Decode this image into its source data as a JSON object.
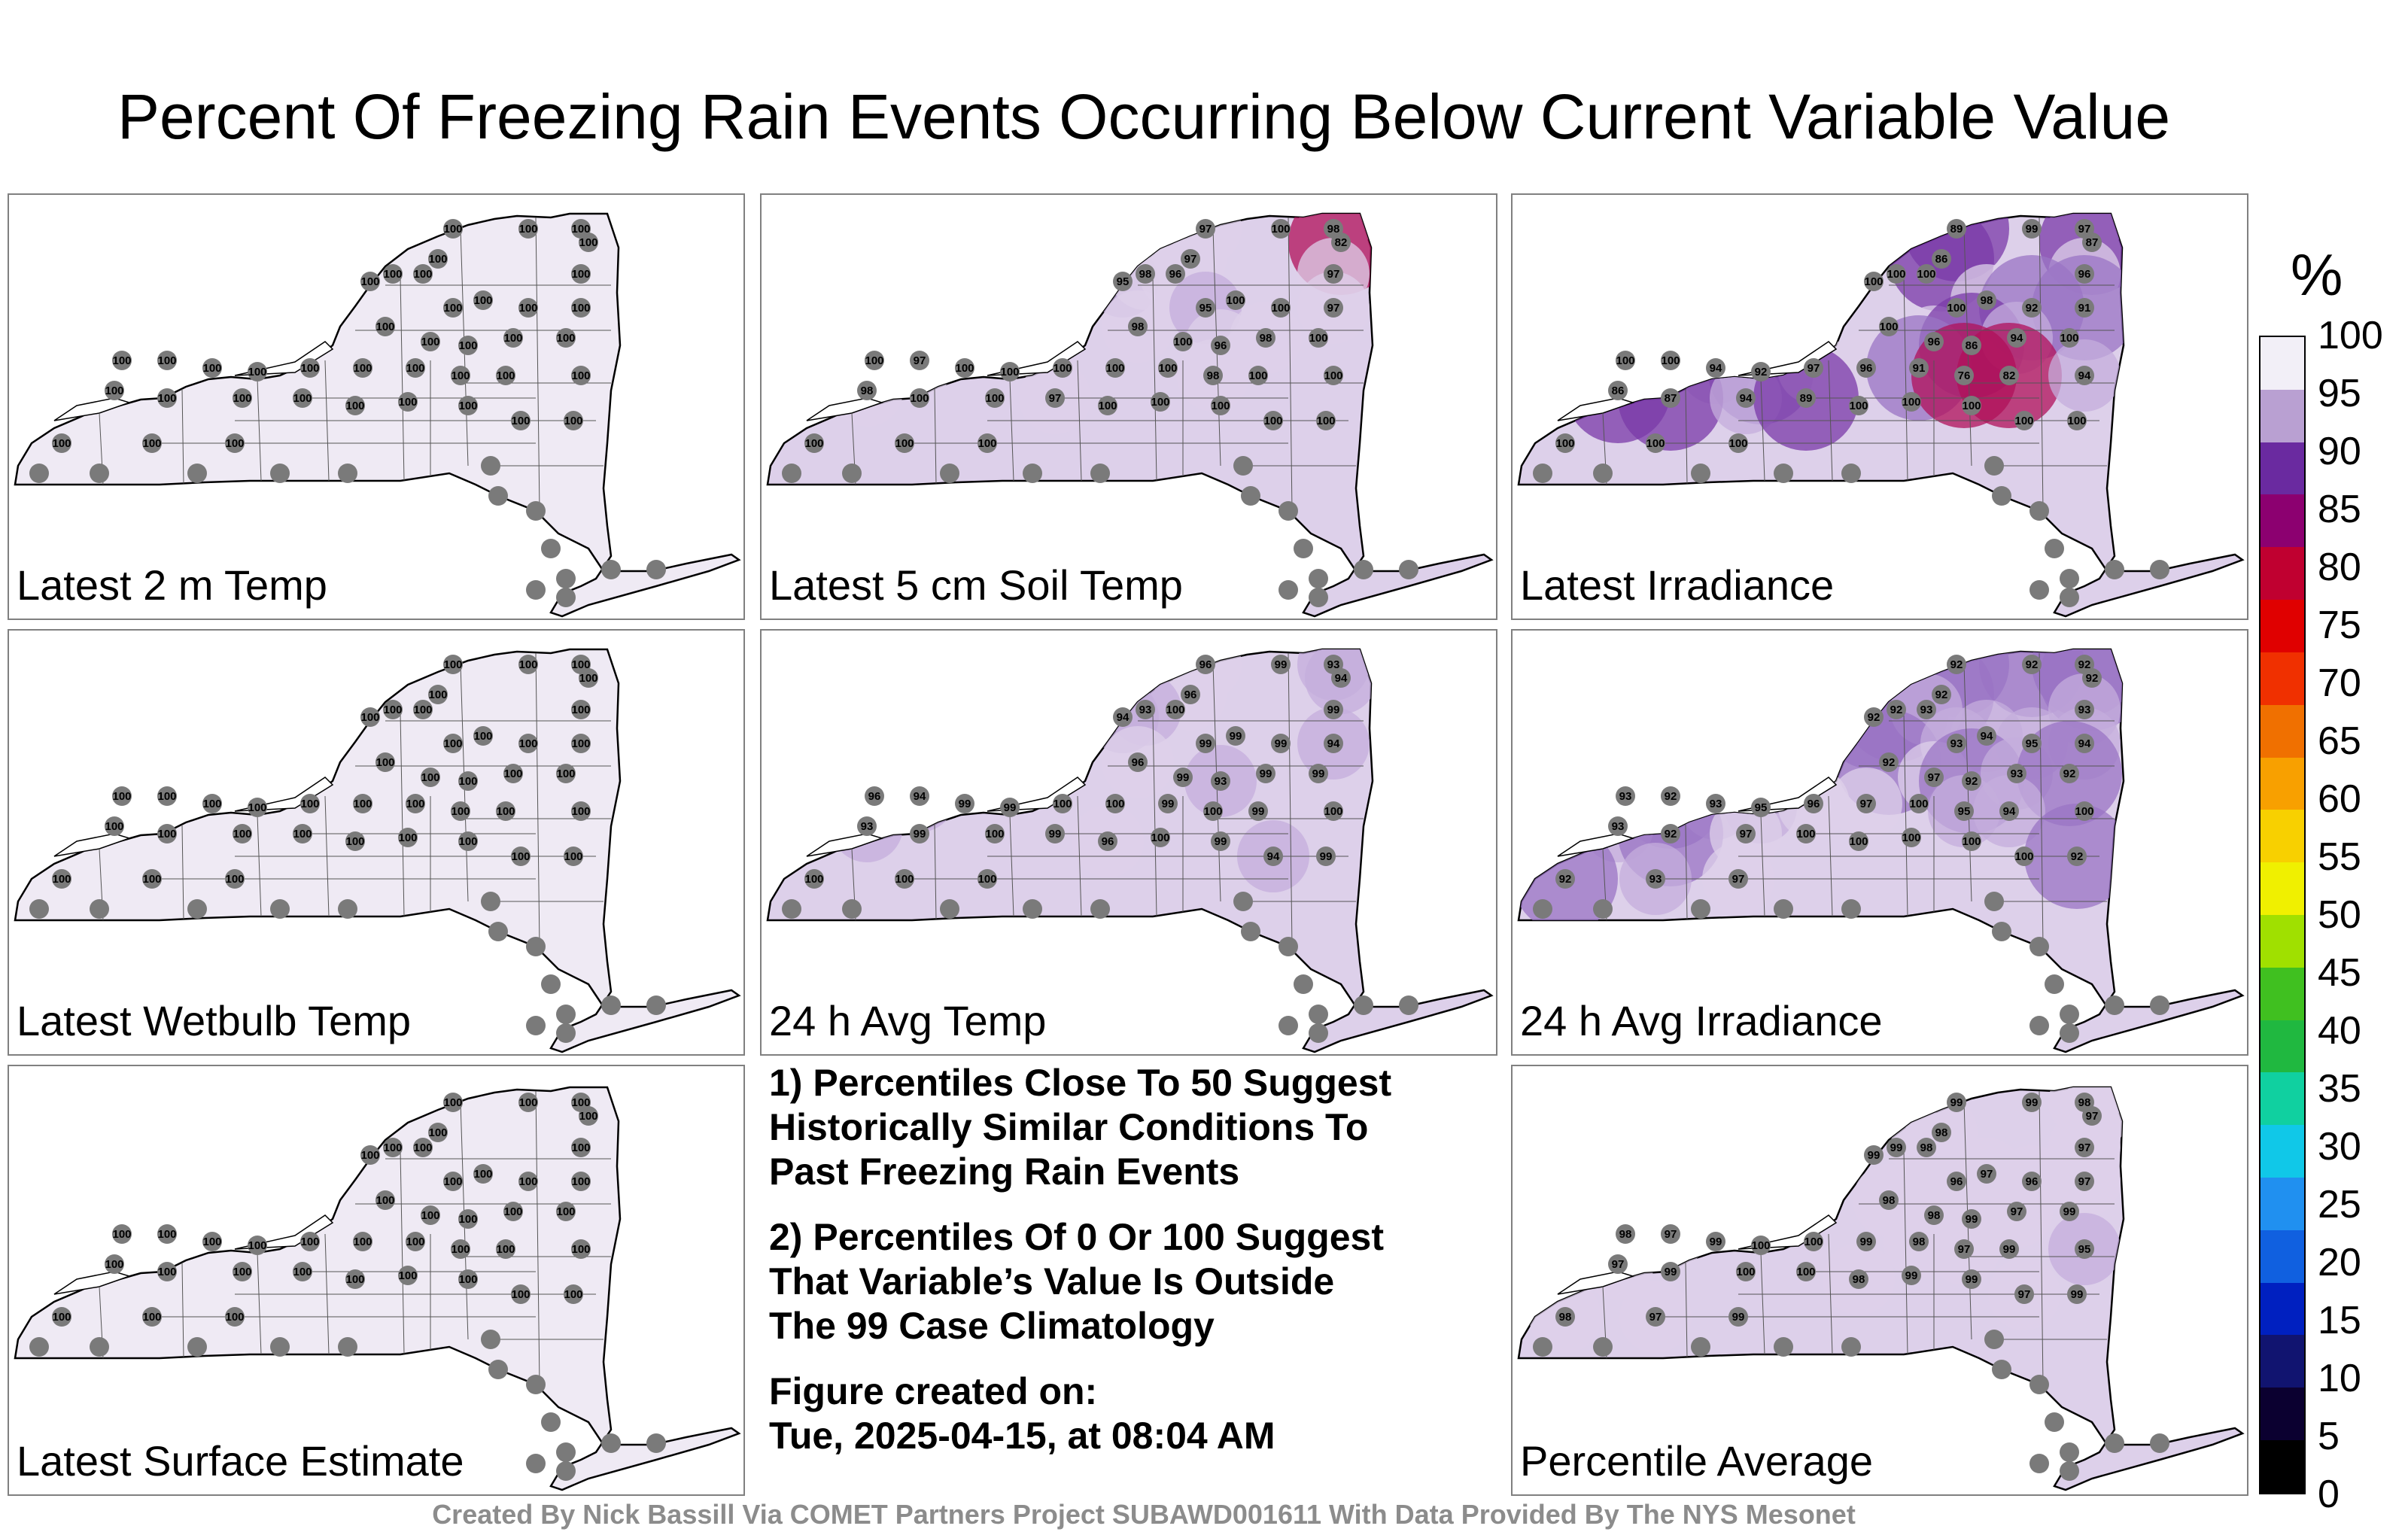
{
  "title": "Percent Of Freezing Rain Events Occurring Below Current Variable Value",
  "panels": [
    {
      "label": "Latest 2 m Temp",
      "labels": [
        "100",
        "100",
        "100",
        "100",
        "100",
        "100",
        "100",
        "100",
        "100",
        "100",
        "100",
        "100",
        "100",
        "100",
        "100",
        "100",
        "100",
        "100",
        "100",
        "100",
        "100",
        "100",
        "100",
        "100",
        "100",
        "100",
        "100",
        "100",
        "100",
        "100",
        "100",
        "100",
        "100",
        "100",
        "100",
        "100",
        "100",
        "100",
        "100",
        "100"
      ]
    },
    {
      "label": "Latest 5 cm Soil Temp",
      "labels": [
        "97",
        "100",
        "98",
        "82",
        "97",
        "95",
        "98",
        "96",
        "97",
        "98",
        "95",
        "100",
        "100",
        "97",
        "100",
        "96",
        "98",
        "100",
        "100",
        "97",
        "100",
        "100",
        "100",
        "100",
        "100",
        "98",
        "100",
        "100",
        "98",
        "100",
        "100",
        "97",
        "100",
        "100",
        "100",
        "100",
        "100",
        "100",
        "100",
        "100"
      ]
    },
    {
      "label": "Latest Irradiance",
      "labels": [
        "89",
        "99",
        "97",
        "87",
        "86",
        "100",
        "100",
        "100",
        "96",
        "100",
        "100",
        "98",
        "92",
        "91",
        "96",
        "86",
        "94",
        "100",
        "100",
        "100",
        "94",
        "92",
        "97",
        "96",
        "91",
        "76",
        "82",
        "94",
        "86",
        "87",
        "94",
        "89",
        "100",
        "100",
        "100",
        "100",
        "100",
        "100",
        "100",
        "100"
      ]
    },
    {
      "label": "Latest Wetbulb Temp",
      "labels": [
        "100",
        "100",
        "100",
        "100",
        "100",
        "100",
        "100",
        "100",
        "100",
        "100",
        "100",
        "100",
        "100",
        "100",
        "100",
        "100",
        "100",
        "100",
        "100",
        "100",
        "100",
        "100",
        "100",
        "100",
        "100",
        "100",
        "100",
        "100",
        "100",
        "100",
        "100",
        "100",
        "100",
        "100",
        "100",
        "100",
        "100",
        "100",
        "100",
        "100"
      ]
    },
    {
      "label": "24 h Avg Temp",
      "labels": [
        "96",
        "99",
        "93",
        "94",
        "96",
        "94",
        "93",
        "100",
        "99",
        "96",
        "99",
        "99",
        "99",
        "94",
        "99",
        "93",
        "99",
        "99",
        "96",
        "94",
        "99",
        "99",
        "100",
        "100",
        "99",
        "100",
        "99",
        "100",
        "93",
        "99",
        "100",
        "99",
        "96",
        "100",
        "99",
        "94",
        "99",
        "100",
        "100",
        "100"
      ]
    },
    {
      "label": "24 h Avg Irradiance",
      "labels": [
        "92",
        "92",
        "92",
        "92",
        "92",
        "92",
        "92",
        "93",
        "93",
        "92",
        "93",
        "94",
        "95",
        "94",
        "97",
        "92",
        "93",
        "92",
        "93",
        "92",
        "93",
        "95",
        "96",
        "97",
        "100",
        "95",
        "94",
        "100",
        "93",
        "92",
        "97",
        "100",
        "100",
        "100",
        "100",
        "100",
        "92",
        "92",
        "93",
        "97"
      ]
    },
    {
      "label": "Latest Surface Estimate",
      "labels": [
        "100",
        "100",
        "100",
        "100",
        "100",
        "100",
        "100",
        "100",
        "100",
        "100",
        "100",
        "100",
        "100",
        "100",
        "100",
        "100",
        "100",
        "100",
        "100",
        "100",
        "100",
        "100",
        "100",
        "100",
        "100",
        "100",
        "100",
        "100",
        "100",
        "100",
        "100",
        "100",
        "100",
        "100",
        "100",
        "100",
        "100",
        "100",
        "100",
        "100"
      ]
    },
    {
      "label": "Percentile Average",
      "labels": [
        "99",
        "99",
        "98",
        "97",
        "98",
        "99",
        "99",
        "98",
        "97",
        "98",
        "96",
        "97",
        "96",
        "97",
        "98",
        "99",
        "97",
        "99",
        "98",
        "97",
        "99",
        "100",
        "100",
        "99",
        "98",
        "97",
        "99",
        "95",
        "97",
        "99",
        "100",
        "100",
        "98",
        "99",
        "99",
        "97",
        "99",
        "98",
        "97",
        "99"
      ]
    }
  ],
  "notes": {
    "n1": "1) Percentiles Close To 50 Suggest\nHistorically Similar Conditions To\nPast Freezing Rain Events",
    "n2": "2) Percentiles Of 0 Or 100 Suggest\nThat Variable’s Value Is Outside\nThe 99 Case Climatology",
    "n3": "Figure created on:\nTue, 2025-04-15, at 08:04 AM"
  },
  "footer": "Created By Nick Bassill Via COMET Partners Project SUBAWD001611 With Data Provided By The NYS Mesonet",
  "colorbar": {
    "unit": "%",
    "ticks": [
      "0",
      "5",
      "10",
      "15",
      "20",
      "25",
      "30",
      "35",
      "40",
      "45",
      "50",
      "55",
      "60",
      "65",
      "70",
      "75",
      "80",
      "85",
      "90",
      "95",
      "100"
    ],
    "colors": [
      "#000000",
      "#0b0030",
      "#111470",
      "#0020c0",
      "#1060e0",
      "#2090f0",
      "#10c8e8",
      "#10d0a0",
      "#20b840",
      "#40c020",
      "#a0e000",
      "#f0f000",
      "#f8d000",
      "#f8a000",
      "#f07000",
      "#f03000",
      "#e00000",
      "#c00030",
      "#8c0070",
      "#6a2aa0",
      "#b9a0d2",
      "#f2eff7"
    ]
  }
}
